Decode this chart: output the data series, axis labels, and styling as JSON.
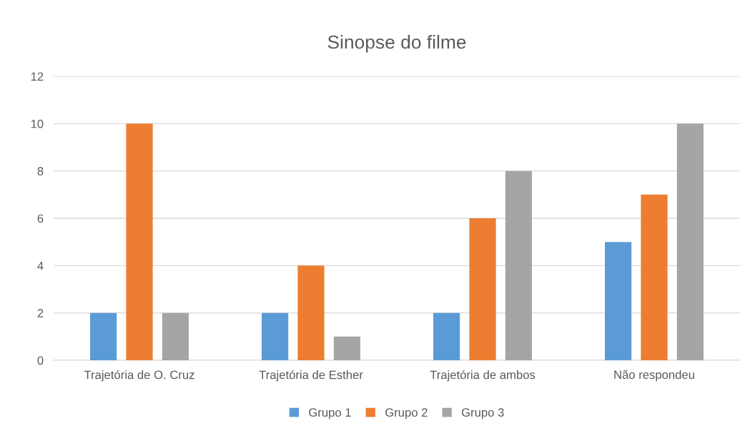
{
  "chart_data": {
    "type": "bar",
    "title": "Sinopse do filme",
    "categories": [
      "Trajetória de O. Cruz",
      "Trajetória de Esther",
      "Trajetória de ambos",
      "Não respondeu"
    ],
    "series": [
      {
        "name": "Grupo 1",
        "color": "#5b9bd5",
        "values": [
          2,
          2,
          2,
          5
        ]
      },
      {
        "name": "Grupo 2",
        "color": "#ed7d31",
        "values": [
          10,
          4,
          6,
          7
        ]
      },
      {
        "name": "Grupo 3",
        "color": "#a5a5a5",
        "values": [
          2,
          1,
          8,
          10
        ]
      }
    ],
    "ylim": [
      0,
      12
    ],
    "yticks": [
      0,
      2,
      4,
      6,
      8,
      10,
      12
    ],
    "grid": "y",
    "legend": "bottom"
  }
}
